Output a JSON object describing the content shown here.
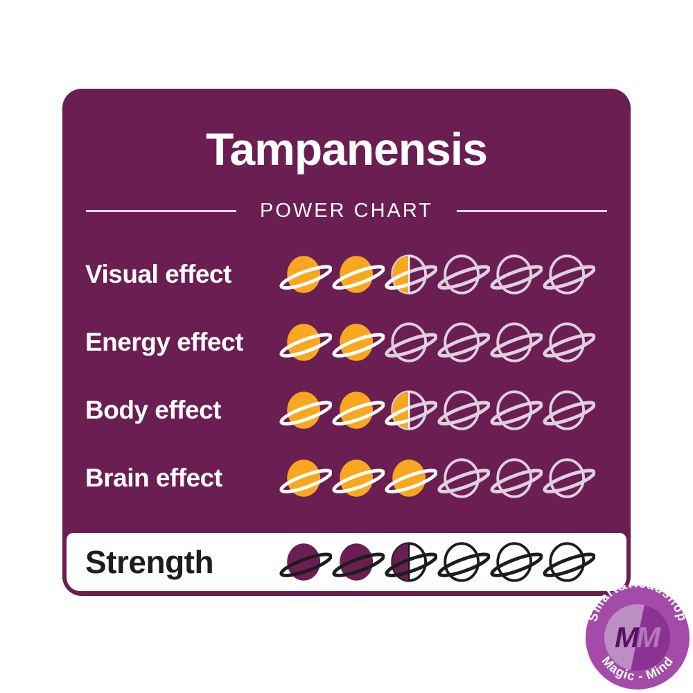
{
  "card": {
    "title": "Tampanensis",
    "subtitle": "POWER CHART"
  },
  "chart_data": {
    "type": "table",
    "title": "Tampanensis",
    "subtitle": "POWER CHART",
    "icon": "saturn-planet-icon",
    "scale_max": 6,
    "rows": [
      {
        "label": "Visual effect",
        "value": 2.5,
        "max": 6
      },
      {
        "label": "Energy effect",
        "value": 2,
        "max": 6
      },
      {
        "label": "Body effect",
        "value": 2.5,
        "max": 6
      },
      {
        "label": "Brain effect",
        "value": 3,
        "max": 6
      }
    ],
    "strength": {
      "label": "Strength",
      "value": 2.5,
      "max": 6
    }
  },
  "colors": {
    "card_bg": "#6A1E52",
    "title_text": "#FFFFFF",
    "divider_line": "#E8D9E6",
    "effect_planet_fill": "#F8A71F",
    "effect_planet_ring_on_fill": "#FFFFFF",
    "effect_planet_outline": "#DFD0DE",
    "effect_half_divider": "#FFFFFF",
    "strength_band_bg": "#FFFFFF",
    "strength_text": "#1D1D1B",
    "strength_planet_fill": "#6A1E52",
    "strength_planet_outline": "#1D1D1B",
    "strength_half_divider": "#1D1D1B"
  },
  "badge": {
    "arc_top_text": "Smart&Headshop",
    "arc_bottom_text": "Magic - Mind",
    "monogram_m1": "M",
    "monogram_m2": "M",
    "outer_color": "#A44AA8",
    "inner_light_color": "#BC8FC2",
    "inner_dark_color": "#8C3292",
    "monogram_dark_color": "#5B1166",
    "monogram_light_color": "#B379BA",
    "text_color": "#FFFFFF"
  }
}
